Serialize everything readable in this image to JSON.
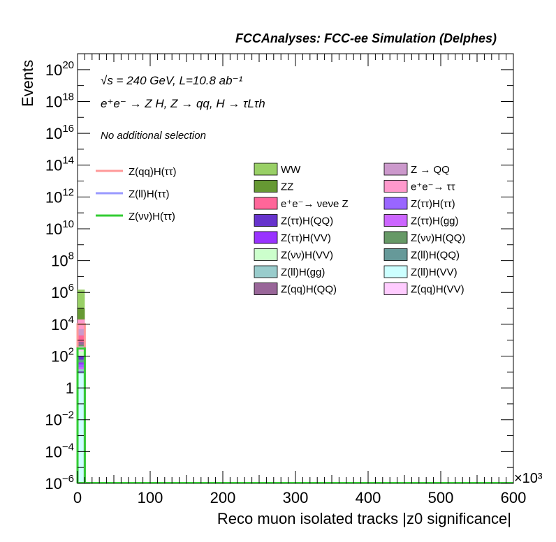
{
  "header": {
    "title": "FCCAnalyses: FCC-ee Simulation (Delphes)"
  },
  "annotations": {
    "energy_lumi": "√s = 240 GeV, L=10.8 ab⁻¹",
    "process": "e⁺e⁻ → Z H, Z → qq, H → τLτh",
    "selection": "No additional selection",
    "x_multiplier": "×10³"
  },
  "chart_data": {
    "type": "bar",
    "title": "FCCAnalyses: FCC-ee Simulation (Delphes)",
    "xlabel": "Reco muon isolated tracks |z0 significance|",
    "ylabel": "Events",
    "xlim": [
      0,
      600000
    ],
    "ylim": [
      1e-06,
      1e+21
    ],
    "yscale": "log",
    "x_ticks": [
      "0",
      "100",
      "200",
      "300",
      "400",
      "500",
      "600"
    ],
    "y_ticks": [
      "10^-6",
      "10^-4",
      "10^-2",
      "1",
      "10^2",
      "10^4",
      "10^6",
      "10^8",
      "10^10",
      "10^12",
      "10^14",
      "10^16",
      "10^18",
      "10^20"
    ],
    "legend_position": "upper area of plot",
    "signal_series": [
      {
        "name": "Z(qq)H(ττ)",
        "color": "#ff9999",
        "values": [
          {
            "x": 5000,
            "y": 10000
          }
        ]
      },
      {
        "name": "Z(ll)H(ττ)",
        "color": "#9999ff",
        "values": [
          {
            "x": 5000,
            "y": 10
          }
        ]
      },
      {
        "name": "Z(νν)H(ττ)",
        "color": "#33cc33",
        "values": [
          {
            "x": 5000,
            "y": 300
          }
        ]
      }
    ],
    "background_series": [
      {
        "name": "WW",
        "color": "#99d066",
        "values": [
          {
            "x": 5000,
            "y": 1500000
          }
        ]
      },
      {
        "name": "Z → QQ",
        "color": "#cc99cc",
        "values": [
          {
            "x": 5000,
            "y": 5000
          }
        ]
      },
      {
        "name": "ZZ",
        "color": "#669933",
        "values": [
          {
            "x": 5000,
            "y": 100000
          }
        ]
      },
      {
        "name": "e⁺e⁻→ ττ",
        "color": "#ff99cc",
        "values": [
          {
            "x": 5000,
            "y": 20000
          }
        ]
      },
      {
        "name": "e⁺e⁻→ νeνe Z",
        "color": "#ff6699",
        "values": [
          {
            "x": 5000,
            "y": 2000
          }
        ]
      },
      {
        "name": "Z(ττ)H(ττ)",
        "color": "#9966ff",
        "values": [
          {
            "x": 5000,
            "y": 30
          }
        ]
      },
      {
        "name": "Z(ττ)H(QQ)",
        "color": "#6633cc",
        "values": [
          {
            "x": 5000,
            "y": 100
          }
        ]
      },
      {
        "name": "Z(ττ)H(gg)",
        "color": "#cc66ff",
        "values": [
          {
            "x": 5000,
            "y": 20
          }
        ]
      },
      {
        "name": "Z(ττ)H(VV)",
        "color": "#9933ff",
        "values": [
          {
            "x": 5000,
            "y": 40
          }
        ]
      },
      {
        "name": "Z(νν)H(QQ)",
        "color": "#669966",
        "values": [
          {
            "x": 5000,
            "y": 500
          }
        ]
      },
      {
        "name": "Z(νν)H(VV)",
        "color": "#ccffcc",
        "values": [
          {
            "x": 5000,
            "y": 200
          }
        ]
      },
      {
        "name": "Z(ll)H(QQ)",
        "color": "#669999",
        "values": [
          {
            "x": 5000,
            "y": 60
          }
        ]
      },
      {
        "name": "Z(ll)H(gg)",
        "color": "#99cccc",
        "values": [
          {
            "x": 5000,
            "y": 15
          }
        ]
      },
      {
        "name": "Z(ll)H(VV)",
        "color": "#ccffff",
        "values": [
          {
            "x": 5000,
            "y": 8
          }
        ]
      },
      {
        "name": "Z(qq)H(QQ)",
        "color": "#996699",
        "values": [
          {
            "x": 5000,
            "y": 800
          }
        ]
      },
      {
        "name": "Z(qq)H(VV)",
        "color": "#ffccff",
        "values": [
          {
            "x": 5000,
            "y": 400
          }
        ]
      }
    ]
  }
}
